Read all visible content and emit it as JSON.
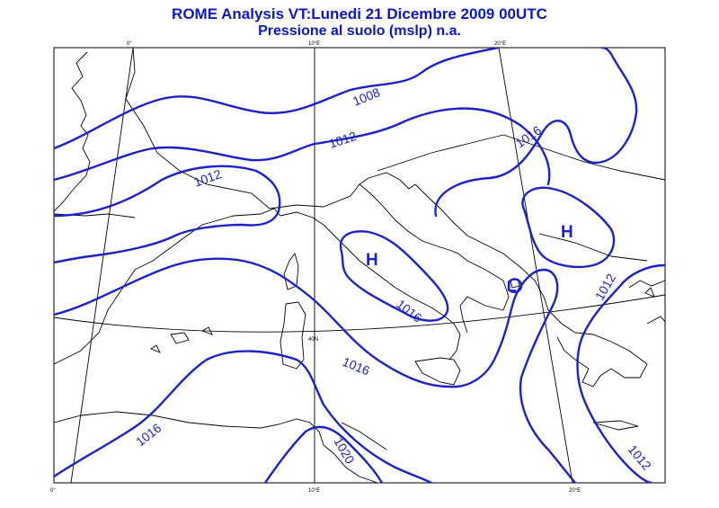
{
  "title": {
    "line1": "ROME  Analysis VT:Lunedi 21 Dicembre 2009 00UTC",
    "line2": "Pressione al suolo (mslp) n.a."
  },
  "grid_labels": {
    "top": [
      "0°",
      "10°E",
      "20°E"
    ],
    "bottom": [
      "0°",
      "10°E",
      "20°E"
    ],
    "parallel": "40N"
  },
  "isobar_labels": [
    "1008",
    "1012",
    "1012",
    "1016",
    "1016",
    "1016",
    "1016",
    "1020",
    "1012",
    "1012"
  ],
  "pressure_centers": [
    "H",
    "H",
    "L"
  ],
  "colors": {
    "isobar": "#1a22c8",
    "coast": "#000000",
    "title": "#0b18c8"
  }
}
